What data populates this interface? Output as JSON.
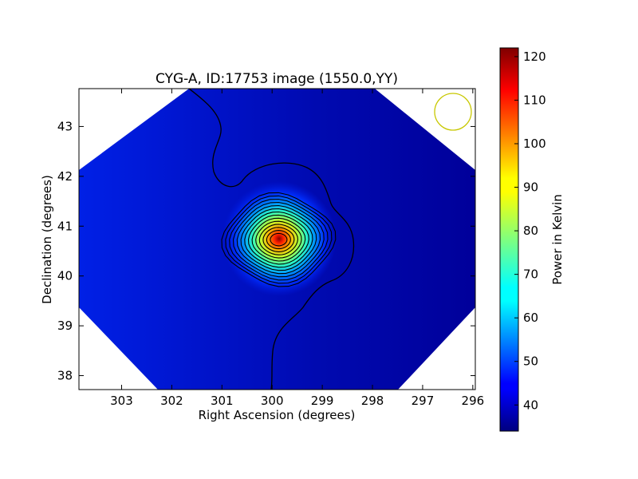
{
  "chart_data": {
    "type": "heatmap",
    "title": "CYG-A, ID:17753 image (1550.0,YY)",
    "xlabel": "Right Ascension (degrees)",
    "ylabel": "Declination (degrees)",
    "x_ticks": [
      303,
      302,
      301,
      300,
      299,
      298,
      297,
      296
    ],
    "y_ticks": [
      38,
      39,
      40,
      41,
      42,
      43
    ],
    "xlim": [
      303.85,
      295.95
    ],
    "ylim": [
      37.72,
      43.76
    ],
    "source_peak": {
      "ra": 299.87,
      "dec": 40.73,
      "value": 122
    },
    "contours": {
      "color": "#000000",
      "count": 14
    },
    "beam_marker": {
      "ra": 296.4,
      "dec": 43.3,
      "color": "#c8c800",
      "shape": "circle"
    },
    "colorbar": {
      "label": "Power in Kelvin",
      "min": 34,
      "max": 122,
      "ticks": [
        40,
        50,
        60,
        70,
        80,
        90,
        100,
        110,
        120
      ],
      "colormap": "jet"
    },
    "background_value": 38
  }
}
